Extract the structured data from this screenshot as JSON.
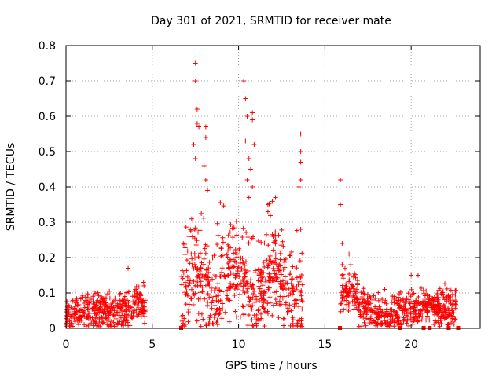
{
  "chart_data": {
    "type": "scatter",
    "title": "Day 301 of 2021, SRMTID for receiver mate",
    "xlabel": "GPS time / hours",
    "ylabel": "SRMTID / TECUs",
    "xlim": [
      0,
      24
    ],
    "ylim": [
      0,
      0.8
    ],
    "xticks": [
      0,
      5,
      10,
      15,
      20
    ],
    "xtick_labels": [
      "0",
      "5",
      "10",
      "15",
      "20"
    ],
    "yticks": [
      0,
      0.1,
      0.2,
      0.3,
      0.4,
      0.5,
      0.6,
      0.7,
      0.8
    ],
    "ytick_labels": [
      "0",
      "0.1",
      "0.2",
      "0.3",
      "0.4",
      "0.5",
      "0.6",
      "0.7",
      "0.8"
    ],
    "grid": true,
    "marker": "+",
    "color": "#ff0000",
    "series": [
      {
        "name": "SRMTID",
        "segments": [
          {
            "x_start": 0.0,
            "x_end": 4.6,
            "baseline": 0.05,
            "spread": 0.04
          },
          {
            "x_start": 6.7,
            "x_end": 13.7,
            "baseline": 0.12,
            "spread": 0.1
          },
          {
            "x_start": 15.9,
            "x_end": 22.6,
            "baseline": 0.06,
            "spread": 0.04
          }
        ],
        "peaks": [
          {
            "x": 3.6,
            "y": 0.17
          },
          {
            "x": 7.5,
            "y": 0.75
          },
          {
            "x": 7.5,
            "y": 0.7
          },
          {
            "x": 7.6,
            "y": 0.62
          },
          {
            "x": 7.6,
            "y": 0.58
          },
          {
            "x": 7.4,
            "y": 0.52
          },
          {
            "x": 7.5,
            "y": 0.48
          },
          {
            "x": 7.7,
            "y": 0.57
          },
          {
            "x": 8.1,
            "y": 0.57
          },
          {
            "x": 8.1,
            "y": 0.54
          },
          {
            "x": 8.0,
            "y": 0.46
          },
          {
            "x": 8.1,
            "y": 0.42
          },
          {
            "x": 8.2,
            "y": 0.39
          },
          {
            "x": 10.3,
            "y": 0.7
          },
          {
            "x": 10.4,
            "y": 0.65
          },
          {
            "x": 10.5,
            "y": 0.6
          },
          {
            "x": 10.4,
            "y": 0.53
          },
          {
            "x": 10.8,
            "y": 0.61
          },
          {
            "x": 10.8,
            "y": 0.59
          },
          {
            "x": 10.9,
            "y": 0.52
          },
          {
            "x": 10.6,
            "y": 0.48
          },
          {
            "x": 10.7,
            "y": 0.45
          },
          {
            "x": 10.5,
            "y": 0.42
          },
          {
            "x": 10.8,
            "y": 0.4
          },
          {
            "x": 10.6,
            "y": 0.37
          },
          {
            "x": 11.7,
            "y": 0.35
          },
          {
            "x": 11.7,
            "y": 0.33
          },
          {
            "x": 12.0,
            "y": 0.26
          },
          {
            "x": 13.6,
            "y": 0.55
          },
          {
            "x": 13.6,
            "y": 0.5
          },
          {
            "x": 13.6,
            "y": 0.47
          },
          {
            "x": 13.6,
            "y": 0.42
          },
          {
            "x": 13.5,
            "y": 0.4
          },
          {
            "x": 13.6,
            "y": 0.28
          },
          {
            "x": 15.9,
            "y": 0.42
          },
          {
            "x": 15.9,
            "y": 0.35
          },
          {
            "x": 16.0,
            "y": 0.24
          },
          {
            "x": 16.0,
            "y": 0.18
          },
          {
            "x": 16.4,
            "y": 0.21
          },
          {
            "x": 16.5,
            "y": 0.18
          },
          {
            "x": 20.0,
            "y": 0.15
          },
          {
            "x": 20.4,
            "y": 0.15
          }
        ]
      }
    ],
    "gap_markers_x": [
      6.65,
      15.85,
      19.35,
      20.7,
      21.05,
      22.15,
      22.7
    ]
  }
}
